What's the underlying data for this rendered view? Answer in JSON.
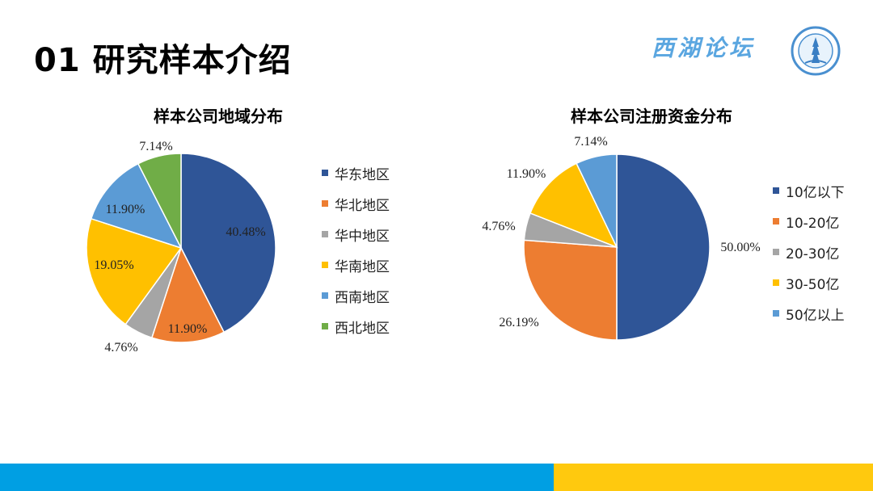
{
  "page": {
    "title": "01 研究样本介绍",
    "brand": "西湖论坛"
  },
  "colors": {
    "blue_dark": "#2F5597",
    "orange": "#ED7D31",
    "gray": "#A5A5A5",
    "yellow": "#FFC000",
    "blue_light": "#5B9BD5",
    "green": "#70AD47",
    "bar_blue": "#009FE3",
    "bar_yellow": "#FFC90E"
  },
  "chart_data": [
    {
      "type": "pie",
      "title": "样本公司地域分布",
      "categories": [
        "华东地区",
        "华北地区",
        "华中地区",
        "华南地区",
        "西南地区",
        "西北地区"
      ],
      "values": [
        40.48,
        11.9,
        4.76,
        19.05,
        11.9,
        7.14
      ],
      "labels": [
        "40.48%",
        "11.90%",
        "4.76%",
        "19.05%",
        "11.90%",
        "7.14%"
      ],
      "colors": [
        "#2F5597",
        "#ED7D31",
        "#A5A5A5",
        "#FFC000",
        "#5B9BD5",
        "#70AD47"
      ],
      "legend": "right"
    },
    {
      "type": "pie",
      "title": "样本公司注册资金分布",
      "categories": [
        "10亿以下",
        "10-20亿",
        "20-30亿",
        "30-50亿",
        "50亿以上"
      ],
      "values": [
        50.0,
        26.19,
        4.76,
        11.9,
        7.14
      ],
      "labels": [
        "50.00%",
        "26.19%",
        "4.76%",
        "11.90%",
        "7.14%"
      ],
      "colors": [
        "#2F5597",
        "#ED7D31",
        "#A5A5A5",
        "#FFC000",
        "#5B9BD5"
      ],
      "legend": "right"
    }
  ]
}
